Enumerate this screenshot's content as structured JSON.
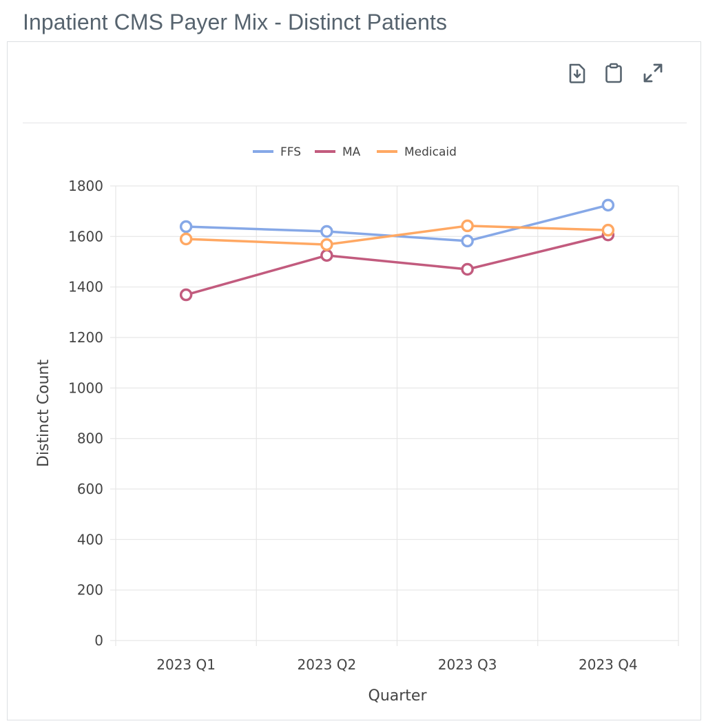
{
  "page": {
    "title": "Inpatient CMS Payer Mix - Distinct Patients"
  },
  "toolbar": {
    "download_label": "Download",
    "copy_label": "Copy to clipboard",
    "expand_label": "Expand"
  },
  "colors": {
    "FFS": "#86a8e7",
    "MA": "#c25b7e",
    "Medicaid": "#ffa863",
    "title": "#56636e",
    "icon": "#56636e",
    "grid": "#e6e6e6",
    "tick_text": "#444444"
  },
  "chart_data": {
    "type": "line",
    "title": "",
    "xlabel": "Quarter",
    "ylabel": "Distinct Count",
    "categories": [
      "2023 Q1",
      "2023 Q2",
      "2023 Q3",
      "2023 Q4"
    ],
    "ylim": [
      0,
      1800
    ],
    "yticks": [
      0,
      200,
      400,
      600,
      800,
      1000,
      1200,
      1400,
      1600,
      1800
    ],
    "grid": true,
    "legend_position": "top-center",
    "series": [
      {
        "name": "FFS",
        "color": "#86a8e7",
        "values": [
          1639,
          1620,
          1582,
          1724
        ]
      },
      {
        "name": "MA",
        "color": "#c25b7e",
        "values": [
          1369,
          1525,
          1470,
          1606
        ]
      },
      {
        "name": "Medicaid",
        "color": "#ffa863",
        "values": [
          1590,
          1568,
          1642,
          1625
        ]
      }
    ]
  }
}
